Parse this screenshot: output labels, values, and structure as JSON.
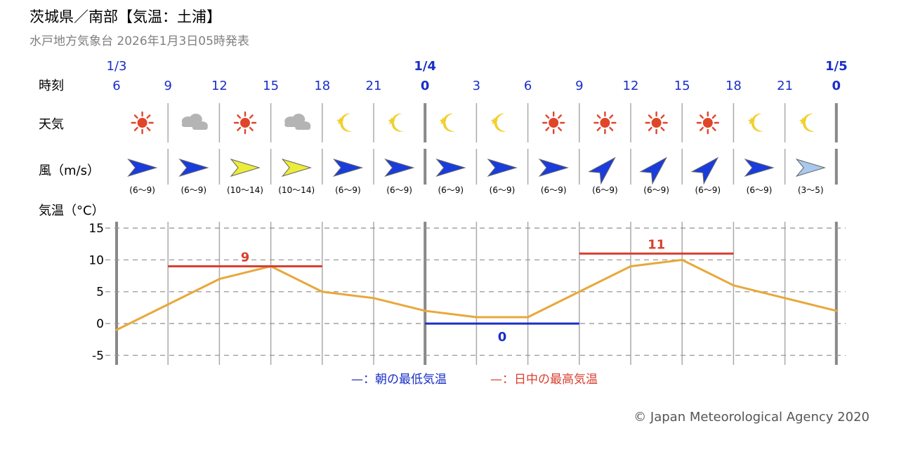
{
  "header": {
    "title": "茨城県／南部【気温：土浦】",
    "subtitle": "水戸地方気象台 2026年1月3日05時発表"
  },
  "row_labels": {
    "time": "時刻",
    "weather": "天気",
    "wind": "風（m/s）",
    "temp": "気温（°C）"
  },
  "time_slots": [
    {
      "date": "1/3",
      "hour": "6",
      "weather": "sun",
      "wind_dir": "E",
      "wind_color": "#1a3cdc",
      "wind_range": "(6〜9)"
    },
    {
      "date": "",
      "hour": "9",
      "weather": "cloud",
      "wind_dir": "E",
      "wind_color": "#1a3cdc",
      "wind_range": "(6〜9)"
    },
    {
      "date": "",
      "hour": "12",
      "weather": "sun",
      "wind_dir": "E",
      "wind_color": "#ecec3a",
      "wind_range": "(10〜14)"
    },
    {
      "date": "",
      "hour": "15",
      "weather": "cloud",
      "wind_dir": "E",
      "wind_color": "#ecec3a",
      "wind_range": "(10〜14)"
    },
    {
      "date": "",
      "hour": "18",
      "weather": "moon",
      "wind_dir": "E",
      "wind_color": "#1a3cdc",
      "wind_range": "(6〜9)"
    },
    {
      "date": "",
      "hour": "21",
      "weather": "moon",
      "wind_dir": "E",
      "wind_color": "#1a3cdc",
      "wind_range": "(6〜9)"
    },
    {
      "date": "1/4",
      "hour": "0",
      "weather": "moon",
      "wind_dir": "E",
      "wind_color": "#1a3cdc",
      "wind_range": "(6〜9)"
    },
    {
      "date": "",
      "hour": "3",
      "weather": "moon",
      "wind_dir": "E",
      "wind_color": "#1a3cdc",
      "wind_range": "(6〜9)"
    },
    {
      "date": "",
      "hour": "6",
      "weather": "sun",
      "wind_dir": "E",
      "wind_color": "#1a3cdc",
      "wind_range": "(6〜9)"
    },
    {
      "date": "",
      "hour": "9",
      "weather": "sun",
      "wind_dir": "NE",
      "wind_color": "#1a3cdc",
      "wind_range": "(6〜9)"
    },
    {
      "date": "",
      "hour": "12",
      "weather": "sun",
      "wind_dir": "NE",
      "wind_color": "#1a3cdc",
      "wind_range": "(6〜9)"
    },
    {
      "date": "",
      "hour": "15",
      "weather": "sun",
      "wind_dir": "NE",
      "wind_color": "#1a3cdc",
      "wind_range": "(6〜9)"
    },
    {
      "date": "",
      "hour": "18",
      "weather": "moon",
      "wind_dir": "E",
      "wind_color": "#1a3cdc",
      "wind_range": "(6〜9)"
    },
    {
      "date": "",
      "hour": "21",
      "weather": "moon",
      "wind_dir": "E",
      "wind_color": "#a8c8ec",
      "wind_range": "(3〜5)"
    },
    {
      "date": "1/5",
      "hour": "0",
      "weather": "",
      "wind_dir": "",
      "wind_color": "",
      "wind_range": ""
    }
  ],
  "colors": {
    "blue_text": "#1a2ec8",
    "temp_line": "#e8a83a",
    "max_line": "#d84030",
    "min_line": "#1a2ec8",
    "sun": "#e0452a",
    "moon": "#f0d030",
    "cloud": "#b4b4b4"
  },
  "chart_data": {
    "type": "line",
    "x": [
      "1/3 6",
      "9",
      "12",
      "15",
      "18",
      "21",
      "1/4 0",
      "3",
      "6",
      "9",
      "12",
      "15",
      "18",
      "21",
      "1/5 0"
    ],
    "series": [
      {
        "values": [
          -1,
          3,
          7,
          9,
          5,
          4,
          2,
          1,
          1,
          5,
          9,
          10,
          6,
          4,
          2
        ]
      }
    ],
    "ylim": [
      -6.5,
      16
    ],
    "yticks": [
      "15",
      "10",
      "5",
      "0",
      "-5"
    ],
    "ytick_values": [
      15,
      10,
      5,
      0,
      -5
    ],
    "max_temps": [
      {
        "label": "9",
        "value": 9,
        "from_slot": 1,
        "to_slot": 4
      },
      {
        "label": "11",
        "value": 11,
        "from_slot": 9,
        "to_slot": 12
      }
    ],
    "min_temps": [
      {
        "label": "0",
        "value": 0,
        "from_slot": 6,
        "to_slot": 9
      }
    ]
  },
  "legend": {
    "min_label": "—：朝の最低気温",
    "max_label": "—：日中の最高気温"
  },
  "footer": {
    "copyright": "© Japan Meteorological Agency 2020"
  }
}
